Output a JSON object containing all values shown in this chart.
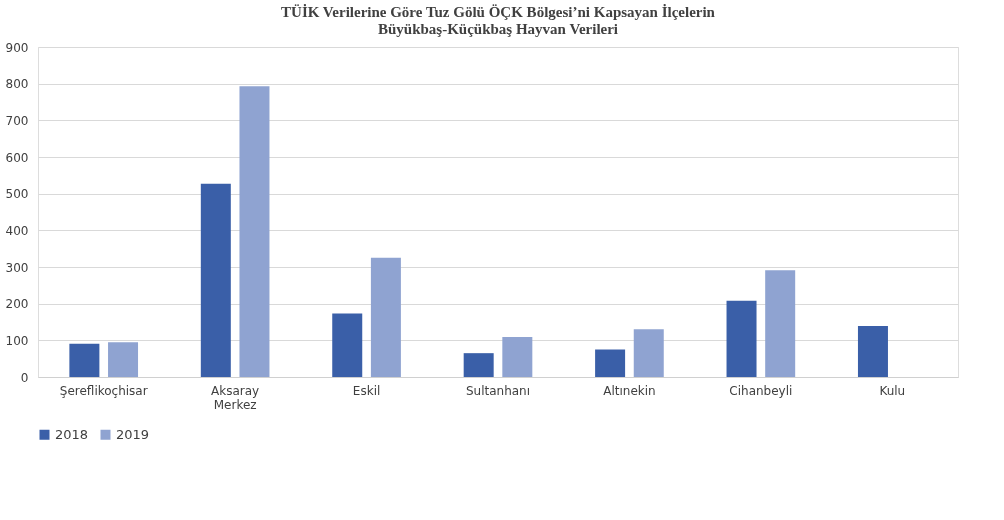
{
  "chart_data": {
    "type": "bar",
    "title": "TÜİK Verilerine Göre Tuz Gölü ÖÇK Bölgesi’ni Kapsayan İlçelerin\nBüyükbaş-Küçükbaş Hayvan Verileri",
    "categories": [
      "Şereflikoçhisar",
      "Aksaray Merkez",
      "Eskil",
      "Sultanhanı",
      "Altınekin",
      "Cihanbeyli",
      "Kulu"
    ],
    "series": [
      {
        "name": "2018",
        "color": "#3a5fa8",
        "values": [
          91,
          527,
          173,
          65,
          75,
          208,
          139
        ]
      },
      {
        "name": "2019",
        "color": "#8fa3d1",
        "values": [
          95,
          793,
          325,
          109,
          130,
          291,
          null
        ]
      }
    ],
    "ylim": [
      0,
      900
    ],
    "yticks": [
      0,
      100,
      200,
      300,
      400,
      500,
      600,
      700,
      800,
      900
    ],
    "grid": "y",
    "legend": "bottom"
  }
}
